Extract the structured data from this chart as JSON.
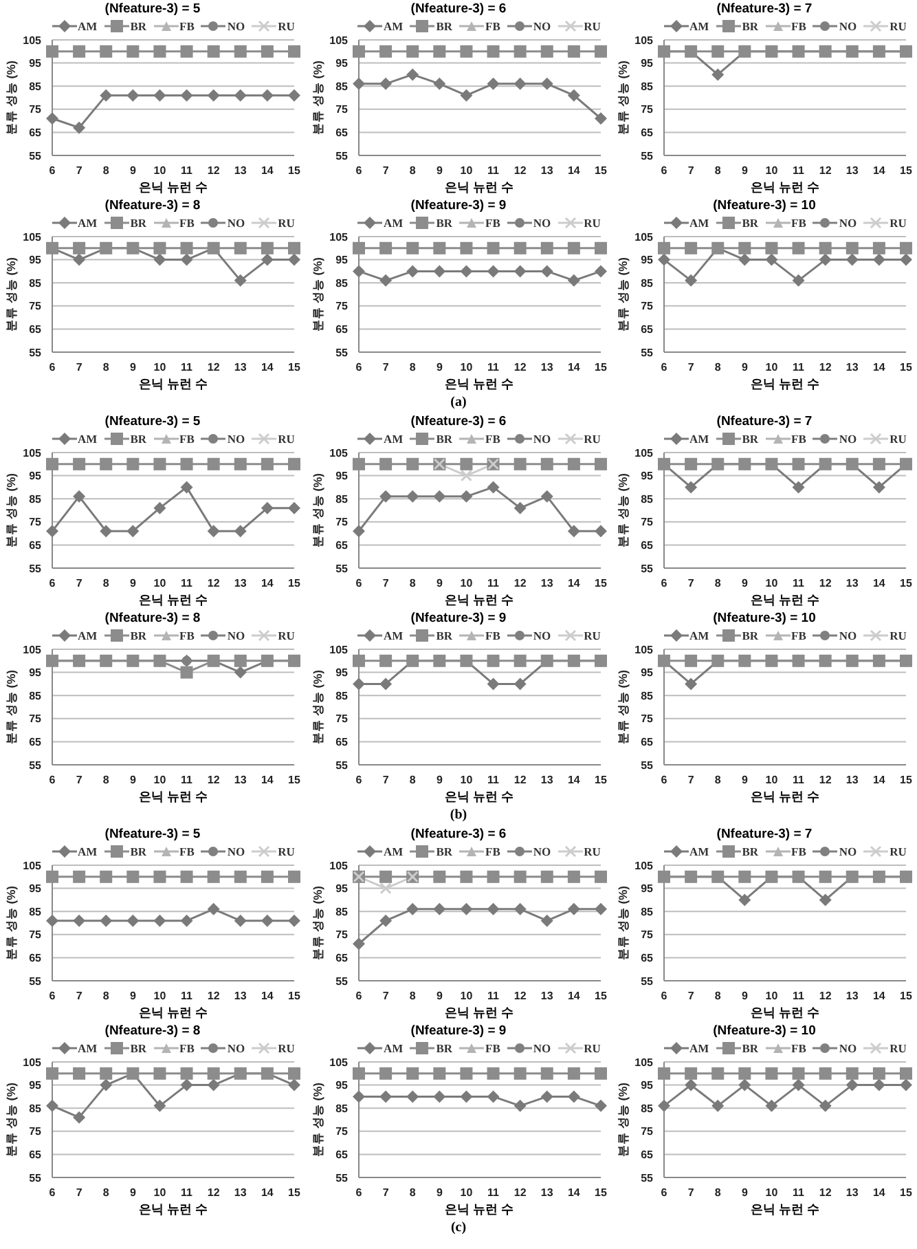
{
  "chart_data": [
    {
      "type": "line",
      "title": "(Nfeature-3) = 5",
      "xlabel": "은닉 뉴런 수",
      "ylabel": "분류 성능 (%)",
      "categories": [
        "6",
        "7",
        "8",
        "9",
        "10",
        "11",
        "12",
        "13",
        "14",
        "15"
      ],
      "ylim": [
        55,
        105
      ],
      "yticks": [
        55,
        65,
        75,
        85,
        95,
        105
      ],
      "grid": "y",
      "legend": "top",
      "series": [
        {
          "name": "AM",
          "color": "#7a7a7a",
          "marker": "diamond",
          "values": [
            71,
            67,
            81,
            81,
            81,
            81,
            81,
            81,
            81,
            81
          ]
        },
        {
          "name": "BR",
          "color": "#8c8c8c",
          "marker": "square",
          "values": [
            100,
            100,
            100,
            100,
            100,
            100,
            100,
            100,
            100,
            100
          ]
        },
        {
          "name": "FB",
          "color": "#b4b4b4",
          "marker": "triangle",
          "values": [
            null,
            null,
            null,
            null,
            null,
            null,
            null,
            null,
            null,
            null
          ]
        },
        {
          "name": "NO",
          "color": "#808080",
          "marker": "circle",
          "values": [
            null,
            null,
            null,
            null,
            null,
            null,
            null,
            null,
            null,
            null
          ]
        },
        {
          "name": "RU",
          "color": "#cccccc",
          "marker": "cross",
          "values": [
            null,
            null,
            null,
            null,
            null,
            null,
            null,
            null,
            null,
            null
          ]
        }
      ]
    },
    {
      "type": "line",
      "title": "(Nfeature-3) = 6",
      "xlabel": "은닉 뉴런 수",
      "ylabel": "분류 성능 (%)",
      "categories": [
        "6",
        "7",
        "8",
        "9",
        "10",
        "11",
        "12",
        "13",
        "14",
        "15"
      ],
      "ylim": [
        55,
        105
      ],
      "yticks": [
        55,
        65,
        75,
        85,
        95,
        105
      ],
      "grid": "y",
      "legend": "top",
      "series": [
        {
          "name": "AM",
          "color": "#7a7a7a",
          "marker": "diamond",
          "values": [
            86,
            86,
            90,
            86,
            81,
            86,
            86,
            86,
            81,
            71
          ]
        },
        {
          "name": "BR",
          "color": "#8c8c8c",
          "marker": "square",
          "values": [
            100,
            100,
            100,
            100,
            100,
            100,
            100,
            100,
            100,
            100
          ]
        },
        {
          "name": "FB",
          "color": "#b4b4b4",
          "marker": "triangle",
          "values": [
            null,
            null,
            null,
            null,
            null,
            null,
            null,
            null,
            null,
            null
          ]
        },
        {
          "name": "NO",
          "color": "#808080",
          "marker": "circle",
          "values": [
            null,
            null,
            null,
            null,
            null,
            null,
            null,
            null,
            null,
            null
          ]
        },
        {
          "name": "RU",
          "color": "#cccccc",
          "marker": "cross",
          "values": [
            null,
            null,
            null,
            null,
            null,
            null,
            null,
            null,
            null,
            null
          ]
        }
      ]
    },
    {
      "type": "line",
      "title": "(Nfeature-3) = 7",
      "xlabel": "은닉 뉴런 수",
      "ylabel": "분류 성능 (%)",
      "categories": [
        "6",
        "7",
        "8",
        "9",
        "10",
        "11",
        "12",
        "13",
        "14",
        "15"
      ],
      "ylim": [
        55,
        105
      ],
      "yticks": [
        55,
        65,
        75,
        85,
        95,
        105
      ],
      "grid": "y",
      "legend": "top",
      "series": [
        {
          "name": "AM",
          "color": "#7a7a7a",
          "marker": "diamond",
          "values": [
            100,
            100,
            90,
            100,
            100,
            100,
            100,
            100,
            100,
            100
          ]
        },
        {
          "name": "BR",
          "color": "#8c8c8c",
          "marker": "square",
          "values": [
            100,
            100,
            100,
            100,
            100,
            100,
            100,
            100,
            100,
            100
          ]
        },
        {
          "name": "FB",
          "color": "#b4b4b4",
          "marker": "triangle",
          "values": [
            null,
            null,
            null,
            null,
            null,
            null,
            null,
            null,
            null,
            null
          ]
        },
        {
          "name": "NO",
          "color": "#808080",
          "marker": "circle",
          "values": [
            null,
            null,
            null,
            null,
            null,
            null,
            null,
            null,
            null,
            null
          ]
        },
        {
          "name": "RU",
          "color": "#cccccc",
          "marker": "cross",
          "values": [
            null,
            null,
            null,
            null,
            null,
            null,
            null,
            null,
            null,
            null
          ]
        }
      ]
    },
    {
      "type": "line",
      "title": "(Nfeature-3) = 8",
      "xlabel": "은닉 뉴런 수",
      "ylabel": "분류 성능 (%)",
      "categories": [
        "6",
        "7",
        "8",
        "9",
        "10",
        "11",
        "12",
        "13",
        "14",
        "15"
      ],
      "ylim": [
        55,
        105
      ],
      "yticks": [
        55,
        65,
        75,
        85,
        95,
        105
      ],
      "grid": "y",
      "legend": "top",
      "series": [
        {
          "name": "AM",
          "color": "#7a7a7a",
          "marker": "diamond",
          "values": [
            100,
            95,
            100,
            100,
            95,
            95,
            100,
            86,
            95,
            95
          ]
        },
        {
          "name": "BR",
          "color": "#8c8c8c",
          "marker": "square",
          "values": [
            100,
            100,
            100,
            100,
            100,
            100,
            100,
            100,
            100,
            100
          ]
        },
        {
          "name": "FB",
          "color": "#b4b4b4",
          "marker": "triangle",
          "values": [
            null,
            null,
            null,
            null,
            null,
            null,
            null,
            null,
            null,
            null
          ]
        },
        {
          "name": "NO",
          "color": "#808080",
          "marker": "circle",
          "values": [
            null,
            null,
            null,
            null,
            null,
            null,
            null,
            null,
            null,
            null
          ]
        },
        {
          "name": "RU",
          "color": "#cccccc",
          "marker": "cross",
          "values": [
            null,
            null,
            null,
            null,
            null,
            null,
            null,
            null,
            null,
            null
          ]
        }
      ]
    },
    {
      "type": "line",
      "title": "(Nfeature-3) = 9",
      "xlabel": "은닉 뉴런 수",
      "ylabel": "분류 성능 (%)",
      "categories": [
        "6",
        "7",
        "8",
        "9",
        "10",
        "11",
        "12",
        "13",
        "14",
        "15"
      ],
      "ylim": [
        55,
        105
      ],
      "yticks": [
        55,
        65,
        75,
        85,
        95,
        105
      ],
      "grid": "y",
      "legend": "top",
      "annotations": [
        "(a)"
      ],
      "series": [
        {
          "name": "AM",
          "color": "#7a7a7a",
          "marker": "diamond",
          "values": [
            90,
            86,
            90,
            90,
            90,
            90,
            90,
            90,
            86,
            90
          ]
        },
        {
          "name": "BR",
          "color": "#8c8c8c",
          "marker": "square",
          "values": [
            100,
            100,
            100,
            100,
            100,
            100,
            100,
            100,
            100,
            100
          ]
        },
        {
          "name": "FB",
          "color": "#b4b4b4",
          "marker": "triangle",
          "values": [
            null,
            null,
            null,
            null,
            null,
            null,
            null,
            null,
            null,
            null
          ]
        },
        {
          "name": "NO",
          "color": "#808080",
          "marker": "circle",
          "values": [
            null,
            null,
            null,
            null,
            null,
            null,
            null,
            null,
            null,
            null
          ]
        },
        {
          "name": "RU",
          "color": "#cccccc",
          "marker": "cross",
          "values": [
            null,
            null,
            null,
            null,
            null,
            null,
            null,
            null,
            null,
            null
          ]
        }
      ]
    },
    {
      "type": "line",
      "title": "(Nfeature-3) = 10",
      "xlabel": "은닉 뉴런 수",
      "ylabel": "분류 성능 (%)",
      "categories": [
        "6",
        "7",
        "8",
        "9",
        "10",
        "11",
        "12",
        "13",
        "14",
        "15"
      ],
      "ylim": [
        55,
        105
      ],
      "yticks": [
        55,
        65,
        75,
        85,
        95,
        105
      ],
      "grid": "y",
      "legend": "top",
      "series": [
        {
          "name": "AM",
          "color": "#7a7a7a",
          "marker": "diamond",
          "values": [
            95,
            86,
            100,
            95,
            95,
            86,
            95,
            95,
            95,
            95
          ]
        },
        {
          "name": "BR",
          "color": "#8c8c8c",
          "marker": "square",
          "values": [
            100,
            100,
            100,
            100,
            100,
            100,
            100,
            100,
            100,
            100
          ]
        },
        {
          "name": "FB",
          "color": "#b4b4b4",
          "marker": "triangle",
          "values": [
            null,
            null,
            null,
            null,
            null,
            null,
            null,
            null,
            null,
            null
          ]
        },
        {
          "name": "NO",
          "color": "#808080",
          "marker": "circle",
          "values": [
            null,
            null,
            null,
            null,
            null,
            null,
            null,
            null,
            null,
            null
          ]
        },
        {
          "name": "RU",
          "color": "#cccccc",
          "marker": "cross",
          "values": [
            null,
            null,
            null,
            null,
            null,
            null,
            null,
            null,
            null,
            null
          ]
        }
      ]
    },
    {
      "type": "line",
      "title": "(Nfeature-3) = 5",
      "xlabel": "은닉 뉴런 수",
      "ylabel": "분류 성능 (%)",
      "categories": [
        "6",
        "7",
        "8",
        "9",
        "10",
        "11",
        "12",
        "13",
        "14",
        "15"
      ],
      "ylim": [
        55,
        105
      ],
      "yticks": [
        55,
        65,
        75,
        85,
        95,
        105
      ],
      "grid": "y",
      "legend": "top",
      "series": [
        {
          "name": "AM",
          "color": "#7a7a7a",
          "marker": "diamond",
          "values": [
            71,
            86,
            71,
            71,
            81,
            90,
            71,
            71,
            81,
            81
          ]
        },
        {
          "name": "BR",
          "color": "#8c8c8c",
          "marker": "square",
          "values": [
            100,
            100,
            100,
            100,
            100,
            100,
            100,
            100,
            100,
            100
          ]
        },
        {
          "name": "FB",
          "color": "#b4b4b4",
          "marker": "triangle",
          "values": [
            null,
            null,
            null,
            null,
            null,
            null,
            null,
            null,
            null,
            null
          ]
        },
        {
          "name": "NO",
          "color": "#808080",
          "marker": "circle",
          "values": [
            null,
            null,
            null,
            null,
            null,
            null,
            null,
            null,
            null,
            null
          ]
        },
        {
          "name": "RU",
          "color": "#cccccc",
          "marker": "cross",
          "values": [
            null,
            null,
            null,
            null,
            null,
            null,
            null,
            null,
            null,
            null
          ]
        }
      ]
    },
    {
      "type": "line",
      "title": "(Nfeature-3) = 6",
      "xlabel": "은닉 뉴런 수",
      "ylabel": "분류 성능 (%)",
      "categories": [
        "6",
        "7",
        "8",
        "9",
        "10",
        "11",
        "12",
        "13",
        "14",
        "15"
      ],
      "ylim": [
        55,
        105
      ],
      "yticks": [
        55,
        65,
        75,
        85,
        95,
        105
      ],
      "grid": "y",
      "legend": "top",
      "series": [
        {
          "name": "AM",
          "color": "#7a7a7a",
          "marker": "diamond",
          "values": [
            71,
            86,
            86,
            86,
            86,
            90,
            81,
            86,
            71,
            71
          ]
        },
        {
          "name": "BR",
          "color": "#8c8c8c",
          "marker": "square",
          "values": [
            100,
            100,
            100,
            100,
            100,
            100,
            100,
            100,
            100,
            100
          ]
        },
        {
          "name": "FB",
          "color": "#b4b4b4",
          "marker": "triangle",
          "values": [
            null,
            null,
            null,
            null,
            null,
            null,
            null,
            null,
            null,
            null
          ]
        },
        {
          "name": "NO",
          "color": "#808080",
          "marker": "circle",
          "values": [
            null,
            null,
            null,
            null,
            null,
            null,
            null,
            null,
            null,
            null
          ]
        },
        {
          "name": "RU",
          "color": "#cccccc",
          "marker": "cross",
          "values": [
            null,
            null,
            null,
            100,
            95,
            100,
            null,
            null,
            null,
            null
          ]
        }
      ]
    },
    {
      "type": "line",
      "title": "(Nfeature-3) = 7",
      "xlabel": "은닉 뉴런 수",
      "ylabel": "분류 성능 (%)",
      "categories": [
        "6",
        "7",
        "8",
        "9",
        "10",
        "11",
        "12",
        "13",
        "14",
        "15"
      ],
      "ylim": [
        55,
        105
      ],
      "yticks": [
        55,
        65,
        75,
        85,
        95,
        105
      ],
      "grid": "y",
      "legend": "top",
      "series": [
        {
          "name": "AM",
          "color": "#7a7a7a",
          "marker": "diamond",
          "values": [
            100,
            90,
            100,
            100,
            100,
            90,
            100,
            100,
            90,
            100
          ]
        },
        {
          "name": "BR",
          "color": "#8c8c8c",
          "marker": "square",
          "values": [
            100,
            100,
            100,
            100,
            100,
            100,
            100,
            100,
            100,
            100
          ]
        },
        {
          "name": "FB",
          "color": "#b4b4b4",
          "marker": "triangle",
          "values": [
            null,
            null,
            null,
            null,
            null,
            null,
            null,
            null,
            null,
            null
          ]
        },
        {
          "name": "NO",
          "color": "#808080",
          "marker": "circle",
          "values": [
            null,
            null,
            null,
            null,
            null,
            null,
            null,
            null,
            null,
            null
          ]
        },
        {
          "name": "RU",
          "color": "#cccccc",
          "marker": "cross",
          "values": [
            null,
            null,
            null,
            null,
            null,
            null,
            null,
            null,
            null,
            null
          ]
        }
      ]
    },
    {
      "type": "line",
      "title": "(Nfeature-3) = 8",
      "xlabel": "은닉 뉴런 수",
      "ylabel": "분류 성능 (%)",
      "categories": [
        "6",
        "7",
        "8",
        "9",
        "10",
        "11",
        "12",
        "13",
        "14",
        "15"
      ],
      "ylim": [
        55,
        105
      ],
      "yticks": [
        55,
        65,
        75,
        85,
        95,
        105
      ],
      "grid": "y",
      "legend": "top",
      "series": [
        {
          "name": "AM",
          "color": "#7a7a7a",
          "marker": "diamond",
          "values": [
            100,
            100,
            100,
            100,
            100,
            100,
            100,
            95,
            100,
            100
          ]
        },
        {
          "name": "BR",
          "color": "#8c8c8c",
          "marker": "square",
          "values": [
            100,
            100,
            100,
            100,
            100,
            95,
            100,
            100,
            100,
            100
          ]
        },
        {
          "name": "FB",
          "color": "#b4b4b4",
          "marker": "triangle",
          "values": [
            null,
            null,
            null,
            null,
            null,
            null,
            null,
            null,
            null,
            null
          ]
        },
        {
          "name": "NO",
          "color": "#808080",
          "marker": "circle",
          "values": [
            null,
            null,
            null,
            null,
            null,
            100,
            null,
            null,
            null,
            null
          ]
        },
        {
          "name": "RU",
          "color": "#cccccc",
          "marker": "cross",
          "values": [
            null,
            null,
            null,
            null,
            null,
            null,
            null,
            null,
            null,
            null
          ]
        }
      ]
    },
    {
      "type": "line",
      "title": "(Nfeature-3) = 9",
      "xlabel": "은닉 뉴런 수",
      "ylabel": "분류 성능 (%)",
      "categories": [
        "6",
        "7",
        "8",
        "9",
        "10",
        "11",
        "12",
        "13",
        "14",
        "15"
      ],
      "ylim": [
        55,
        105
      ],
      "yticks": [
        55,
        65,
        75,
        85,
        95,
        105
      ],
      "grid": "y",
      "legend": "top",
      "annotations": [
        "(b)"
      ],
      "series": [
        {
          "name": "AM",
          "color": "#7a7a7a",
          "marker": "diamond",
          "values": [
            90,
            90,
            100,
            100,
            100,
            90,
            90,
            100,
            100,
            100
          ]
        },
        {
          "name": "BR",
          "color": "#8c8c8c",
          "marker": "square",
          "values": [
            100,
            100,
            100,
            100,
            100,
            100,
            100,
            100,
            100,
            100
          ]
        },
        {
          "name": "FB",
          "color": "#b4b4b4",
          "marker": "triangle",
          "values": [
            null,
            null,
            null,
            null,
            null,
            null,
            null,
            null,
            null,
            null
          ]
        },
        {
          "name": "NO",
          "color": "#808080",
          "marker": "circle",
          "values": [
            null,
            null,
            null,
            null,
            null,
            null,
            null,
            null,
            null,
            null
          ]
        },
        {
          "name": "RU",
          "color": "#cccccc",
          "marker": "cross",
          "values": [
            null,
            null,
            null,
            null,
            null,
            null,
            null,
            null,
            null,
            null
          ]
        }
      ]
    },
    {
      "type": "line",
      "title": "(Nfeature-3) = 10",
      "xlabel": "은닉 뉴런 수",
      "ylabel": "분류 성능 (%)",
      "categories": [
        "6",
        "7",
        "8",
        "9",
        "10",
        "11",
        "12",
        "13",
        "14",
        "15"
      ],
      "ylim": [
        55,
        105
      ],
      "yticks": [
        55,
        65,
        75,
        85,
        95,
        105
      ],
      "grid": "y",
      "legend": "top",
      "series": [
        {
          "name": "AM",
          "color": "#7a7a7a",
          "marker": "diamond",
          "values": [
            100,
            90,
            100,
            100,
            100,
            100,
            100,
            100,
            100,
            100
          ]
        },
        {
          "name": "BR",
          "color": "#8c8c8c",
          "marker": "square",
          "values": [
            100,
            100,
            100,
            100,
            100,
            100,
            100,
            100,
            100,
            100
          ]
        },
        {
          "name": "FB",
          "color": "#b4b4b4",
          "marker": "triangle",
          "values": [
            null,
            null,
            null,
            null,
            null,
            null,
            null,
            null,
            null,
            null
          ]
        },
        {
          "name": "NO",
          "color": "#808080",
          "marker": "circle",
          "values": [
            null,
            null,
            null,
            null,
            null,
            null,
            null,
            null,
            null,
            null
          ]
        },
        {
          "name": "RU",
          "color": "#cccccc",
          "marker": "cross",
          "values": [
            null,
            null,
            null,
            null,
            null,
            null,
            null,
            null,
            null,
            null
          ]
        }
      ]
    },
    {
      "type": "line",
      "title": "(Nfeature-3) = 5",
      "xlabel": "은닉 뉴런 수",
      "ylabel": "분류 성능 (%)",
      "categories": [
        "6",
        "7",
        "8",
        "9",
        "10",
        "11",
        "12",
        "13",
        "14",
        "15"
      ],
      "ylim": [
        55,
        105
      ],
      "yticks": [
        55,
        65,
        75,
        85,
        95,
        105
      ],
      "grid": "y",
      "legend": "top",
      "series": [
        {
          "name": "AM",
          "color": "#7a7a7a",
          "marker": "diamond",
          "values": [
            81,
            81,
            81,
            81,
            81,
            81,
            86,
            81,
            81,
            81
          ]
        },
        {
          "name": "BR",
          "color": "#8c8c8c",
          "marker": "square",
          "values": [
            100,
            100,
            100,
            100,
            100,
            100,
            100,
            100,
            100,
            100
          ]
        },
        {
          "name": "FB",
          "color": "#b4b4b4",
          "marker": "triangle",
          "values": [
            null,
            null,
            null,
            null,
            null,
            null,
            null,
            null,
            null,
            null
          ]
        },
        {
          "name": "NO",
          "color": "#808080",
          "marker": "circle",
          "values": [
            null,
            null,
            null,
            null,
            null,
            null,
            null,
            null,
            null,
            null
          ]
        },
        {
          "name": "RU",
          "color": "#cccccc",
          "marker": "cross",
          "values": [
            null,
            null,
            null,
            null,
            null,
            null,
            null,
            null,
            null,
            null
          ]
        }
      ]
    },
    {
      "type": "line",
      "title": "(Nfeature-3) = 6",
      "xlabel": "은닉 뉴런 수",
      "ylabel": "분류 성능 (%)",
      "categories": [
        "6",
        "7",
        "8",
        "9",
        "10",
        "11",
        "12",
        "13",
        "14",
        "15"
      ],
      "ylim": [
        55,
        105
      ],
      "yticks": [
        55,
        65,
        75,
        85,
        95,
        105
      ],
      "grid": "y",
      "legend": "top",
      "series": [
        {
          "name": "AM",
          "color": "#7a7a7a",
          "marker": "diamond",
          "values": [
            71,
            81,
            86,
            86,
            86,
            86,
            86,
            81,
            86,
            86
          ]
        },
        {
          "name": "BR",
          "color": "#8c8c8c",
          "marker": "square",
          "values": [
            100,
            100,
            100,
            100,
            100,
            100,
            100,
            100,
            100,
            100
          ]
        },
        {
          "name": "FB",
          "color": "#b4b4b4",
          "marker": "triangle",
          "values": [
            null,
            null,
            null,
            null,
            null,
            null,
            null,
            null,
            null,
            null
          ]
        },
        {
          "name": "NO",
          "color": "#808080",
          "marker": "circle",
          "values": [
            null,
            null,
            null,
            null,
            null,
            null,
            null,
            null,
            null,
            null
          ]
        },
        {
          "name": "RU",
          "color": "#cccccc",
          "marker": "cross",
          "values": [
            100,
            95,
            100,
            null,
            null,
            null,
            null,
            null,
            null,
            null
          ]
        }
      ]
    },
    {
      "type": "line",
      "title": "(Nfeature-3) = 7",
      "xlabel": "은닉 뉴런 수",
      "ylabel": "분류 성능 (%)",
      "categories": [
        "6",
        "7",
        "8",
        "9",
        "10",
        "11",
        "12",
        "13",
        "14",
        "15"
      ],
      "ylim": [
        55,
        105
      ],
      "yticks": [
        55,
        65,
        75,
        85,
        95,
        105
      ],
      "grid": "y",
      "legend": "top",
      "series": [
        {
          "name": "AM",
          "color": "#7a7a7a",
          "marker": "diamond",
          "values": [
            100,
            100,
            100,
            90,
            100,
            100,
            90,
            100,
            100,
            100
          ]
        },
        {
          "name": "BR",
          "color": "#8c8c8c",
          "marker": "square",
          "values": [
            100,
            100,
            100,
            100,
            100,
            100,
            100,
            100,
            100,
            100
          ]
        },
        {
          "name": "FB",
          "color": "#b4b4b4",
          "marker": "triangle",
          "values": [
            null,
            null,
            null,
            null,
            null,
            null,
            null,
            null,
            null,
            null
          ]
        },
        {
          "name": "NO",
          "color": "#808080",
          "marker": "circle",
          "values": [
            null,
            null,
            null,
            null,
            null,
            null,
            null,
            null,
            null,
            null
          ]
        },
        {
          "name": "RU",
          "color": "#cccccc",
          "marker": "cross",
          "values": [
            null,
            null,
            null,
            null,
            null,
            null,
            null,
            null,
            null,
            null
          ]
        }
      ]
    },
    {
      "type": "line",
      "title": "(Nfeature-3) = 8",
      "xlabel": "은닉 뉴런 수",
      "ylabel": "분류 성능 (%)",
      "categories": [
        "6",
        "7",
        "8",
        "9",
        "10",
        "11",
        "12",
        "13",
        "14",
        "15"
      ],
      "ylim": [
        55,
        105
      ],
      "yticks": [
        55,
        65,
        75,
        85,
        95,
        105
      ],
      "grid": "y",
      "legend": "top",
      "series": [
        {
          "name": "AM",
          "color": "#7a7a7a",
          "marker": "diamond",
          "values": [
            86,
            81,
            95,
            100,
            86,
            95,
            95,
            100,
            100,
            95
          ]
        },
        {
          "name": "BR",
          "color": "#8c8c8c",
          "marker": "square",
          "values": [
            100,
            100,
            100,
            100,
            100,
            100,
            100,
            100,
            100,
            100
          ]
        },
        {
          "name": "FB",
          "color": "#b4b4b4",
          "marker": "triangle",
          "values": [
            null,
            null,
            null,
            null,
            null,
            null,
            null,
            null,
            null,
            null
          ]
        },
        {
          "name": "NO",
          "color": "#808080",
          "marker": "circle",
          "values": [
            null,
            null,
            null,
            null,
            null,
            null,
            null,
            null,
            null,
            null
          ]
        },
        {
          "name": "RU",
          "color": "#cccccc",
          "marker": "cross",
          "values": [
            null,
            null,
            null,
            null,
            null,
            null,
            null,
            null,
            null,
            null
          ]
        }
      ]
    },
    {
      "type": "line",
      "title": "(Nfeature-3) = 9",
      "xlabel": "은닉 뉴런 수",
      "ylabel": "분류 성능 (%)",
      "categories": [
        "6",
        "7",
        "8",
        "9",
        "10",
        "11",
        "12",
        "13",
        "14",
        "15"
      ],
      "ylim": [
        55,
        105
      ],
      "yticks": [
        55,
        65,
        75,
        85,
        95,
        105
      ],
      "grid": "y",
      "legend": "top",
      "annotations": [
        "(c)"
      ],
      "series": [
        {
          "name": "AM",
          "color": "#7a7a7a",
          "marker": "diamond",
          "values": [
            90,
            90,
            90,
            90,
            90,
            90,
            86,
            90,
            90,
            86
          ]
        },
        {
          "name": "BR",
          "color": "#8c8c8c",
          "marker": "square",
          "values": [
            100,
            100,
            100,
            100,
            100,
            100,
            100,
            100,
            100,
            100
          ]
        },
        {
          "name": "FB",
          "color": "#b4b4b4",
          "marker": "triangle",
          "values": [
            null,
            null,
            null,
            null,
            null,
            null,
            null,
            null,
            null,
            null
          ]
        },
        {
          "name": "NO",
          "color": "#808080",
          "marker": "circle",
          "values": [
            null,
            null,
            null,
            null,
            null,
            null,
            null,
            null,
            null,
            null
          ]
        },
        {
          "name": "RU",
          "color": "#cccccc",
          "marker": "cross",
          "values": [
            null,
            null,
            null,
            null,
            null,
            null,
            null,
            null,
            null,
            null
          ]
        }
      ]
    },
    {
      "type": "line",
      "title": "(Nfeature-3) = 10",
      "xlabel": "은닉 뉴런 수",
      "ylabel": "분류 성능 (%)",
      "categories": [
        "6",
        "7",
        "8",
        "9",
        "10",
        "11",
        "12",
        "13",
        "14",
        "15"
      ],
      "ylim": [
        55,
        105
      ],
      "yticks": [
        55,
        65,
        75,
        85,
        95,
        105
      ],
      "grid": "y",
      "legend": "top",
      "series": [
        {
          "name": "AM",
          "color": "#7a7a7a",
          "marker": "diamond",
          "values": [
            86,
            95,
            86,
            95,
            86,
            95,
            86,
            95,
            95,
            95
          ]
        },
        {
          "name": "BR",
          "color": "#8c8c8c",
          "marker": "square",
          "values": [
            100,
            100,
            100,
            100,
            100,
            100,
            100,
            100,
            100,
            100
          ]
        },
        {
          "name": "FB",
          "color": "#b4b4b4",
          "marker": "triangle",
          "values": [
            null,
            null,
            null,
            null,
            null,
            null,
            null,
            null,
            null,
            null
          ]
        },
        {
          "name": "NO",
          "color": "#808080",
          "marker": "circle",
          "values": [
            null,
            null,
            null,
            null,
            null,
            null,
            null,
            null,
            null,
            null
          ]
        },
        {
          "name": "RU",
          "color": "#cccccc",
          "marker": "cross",
          "values": [
            null,
            null,
            null,
            null,
            null,
            null,
            null,
            null,
            null,
            null
          ]
        }
      ]
    }
  ]
}
